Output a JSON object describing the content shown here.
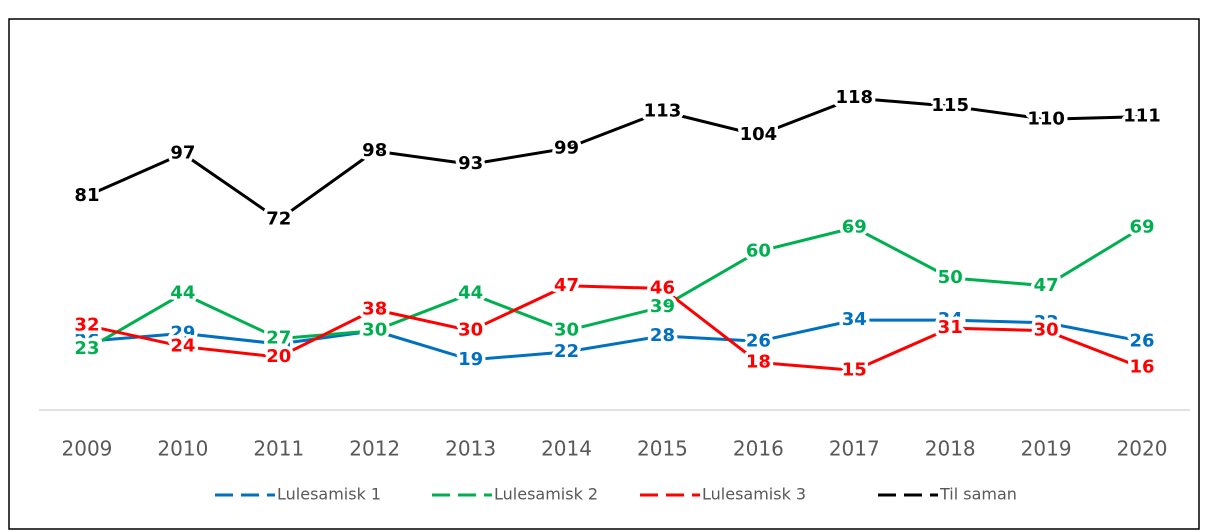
{
  "chart_data": {
    "type": "line",
    "categories": [
      "2009",
      "2010",
      "2011",
      "2012",
      "2013",
      "2014",
      "2015",
      "2016",
      "2017",
      "2018",
      "2019",
      "2020"
    ],
    "series": [
      {
        "name": "Lulesamisk 1",
        "color": "#0070c0",
        "values": [
          26,
          29,
          25,
          30,
          19,
          22,
          28,
          26,
          34,
          34,
          33,
          26
        ]
      },
      {
        "name": "Lulesamisk 2",
        "color": "#00b050",
        "values": [
          23,
          44,
          27,
          30,
          44,
          30,
          39,
          60,
          69,
          50,
          47,
          69
        ]
      },
      {
        "name": "Lulesamisk 3",
        "color": "#ff0000",
        "values": [
          32,
          24,
          20,
          38,
          30,
          47,
          46,
          18,
          15,
          31,
          30,
          16
        ]
      },
      {
        "name": "Til saman",
        "color": "#000000",
        "values": [
          81,
          97,
          72,
          98,
          93,
          99,
          113,
          104,
          118,
          115,
          110,
          111
        ]
      }
    ],
    "ylim": [
      0,
      140
    ],
    "legend": "bottom"
  }
}
